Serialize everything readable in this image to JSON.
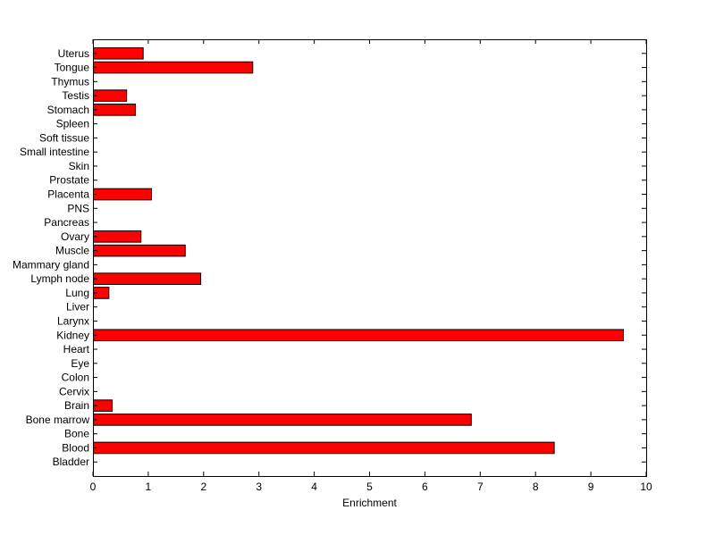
{
  "chart_data": {
    "type": "bar",
    "orientation": "horizontal",
    "title": "",
    "xlabel": "Enrichment",
    "ylabel": "",
    "xlim": [
      0,
      10
    ],
    "xticks": [
      "0",
      "1",
      "2",
      "3",
      "4",
      "5",
      "6",
      "7",
      "8",
      "9",
      "10"
    ],
    "grid": false,
    "bar_color": "#ff0000",
    "categories": [
      "Bladder",
      "Blood",
      "Bone",
      "Bone marrow",
      "Brain",
      "Cervix",
      "Colon",
      "Eye",
      "Heart",
      "Kidney",
      "Larynx",
      "Liver",
      "Lung",
      "Lymph node",
      "Mammary gland",
      "Muscle",
      "Ovary",
      "Pancreas",
      "PNS",
      "Placenta",
      "Prostate",
      "Skin",
      "Small intestine",
      "Soft tissue",
      "Spleen",
      "Stomach",
      "Testis",
      "Thymus",
      "Tongue",
      "Uterus"
    ],
    "values": [
      0,
      8.33,
      0,
      6.83,
      0.34,
      0,
      0,
      0,
      0,
      9.58,
      0,
      0,
      0.28,
      1.94,
      0,
      1.66,
      0.86,
      0,
      0,
      1.05,
      0,
      0,
      0,
      0,
      0,
      0.76,
      0.6,
      0,
      2.88,
      0.9
    ]
  }
}
